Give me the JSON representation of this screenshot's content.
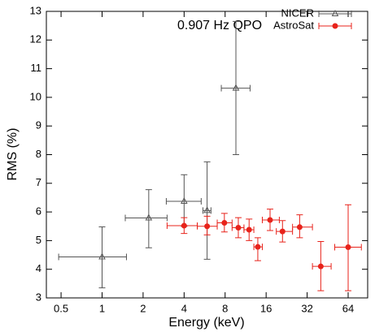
{
  "chart_data": {
    "type": "scatter",
    "title": "0.907 Hz QPO",
    "xlabel": "Energy (keV)",
    "ylabel": "RMS (%)",
    "xscale": "log",
    "xlim": [
      0.39,
      89
    ],
    "ylim": [
      3,
      13
    ],
    "xticks": [
      0.5,
      1,
      2,
      4,
      8,
      16,
      32,
      64
    ],
    "yticks": [
      3,
      4,
      5,
      6,
      7,
      8,
      9,
      10,
      11,
      12,
      13
    ],
    "legend": "upper right",
    "series": [
      {
        "name": "NICER",
        "color": "#555555",
        "marker": "triangle",
        "x": [
          1,
          2.2,
          4,
          5.9,
          9.6
        ],
        "values": [
          4.43,
          5.79,
          6.37,
          6.05,
          10.32
        ],
        "xlow": [
          0.48,
          1.48,
          2.96,
          5.5,
          7.5
        ],
        "xhigh": [
          1.51,
          3.0,
          5.34,
          6.3,
          12.2
        ],
        "ylow": [
          3.35,
          4.75,
          5.5,
          4.35,
          8.0
        ],
        "yhigh": [
          5.48,
          6.78,
          7.3,
          7.75,
          12.65
        ]
      },
      {
        "name": "AstroSat",
        "color": "#e8231b",
        "marker": "circle",
        "x": [
          4.0,
          5.9,
          7.9,
          10,
          12,
          13.9,
          17.1,
          21.1,
          28.2,
          40.3,
          64
        ],
        "values": [
          5.52,
          5.5,
          5.62,
          5.45,
          5.38,
          4.78,
          5.72,
          5.32,
          5.47,
          4.1,
          4.77
        ],
        "xlow": [
          3.0,
          5.0,
          7.0,
          9.0,
          11.0,
          13.0,
          15.0,
          19.0,
          25.0,
          35.0,
          51.0
        ],
        "xhigh": [
          5.0,
          7.0,
          9.0,
          11.0,
          13.0,
          15.0,
          20.0,
          25.0,
          35.0,
          48.0,
          80.0
        ],
        "ylow": [
          5.25,
          5.2,
          5.3,
          5.1,
          5.0,
          4.3,
          5.35,
          4.95,
          5.1,
          3.25,
          3.25
        ],
        "yhigh": [
          5.8,
          5.85,
          5.95,
          5.8,
          5.75,
          5.1,
          6.1,
          5.7,
          5.9,
          4.97,
          6.25
        ]
      }
    ]
  }
}
